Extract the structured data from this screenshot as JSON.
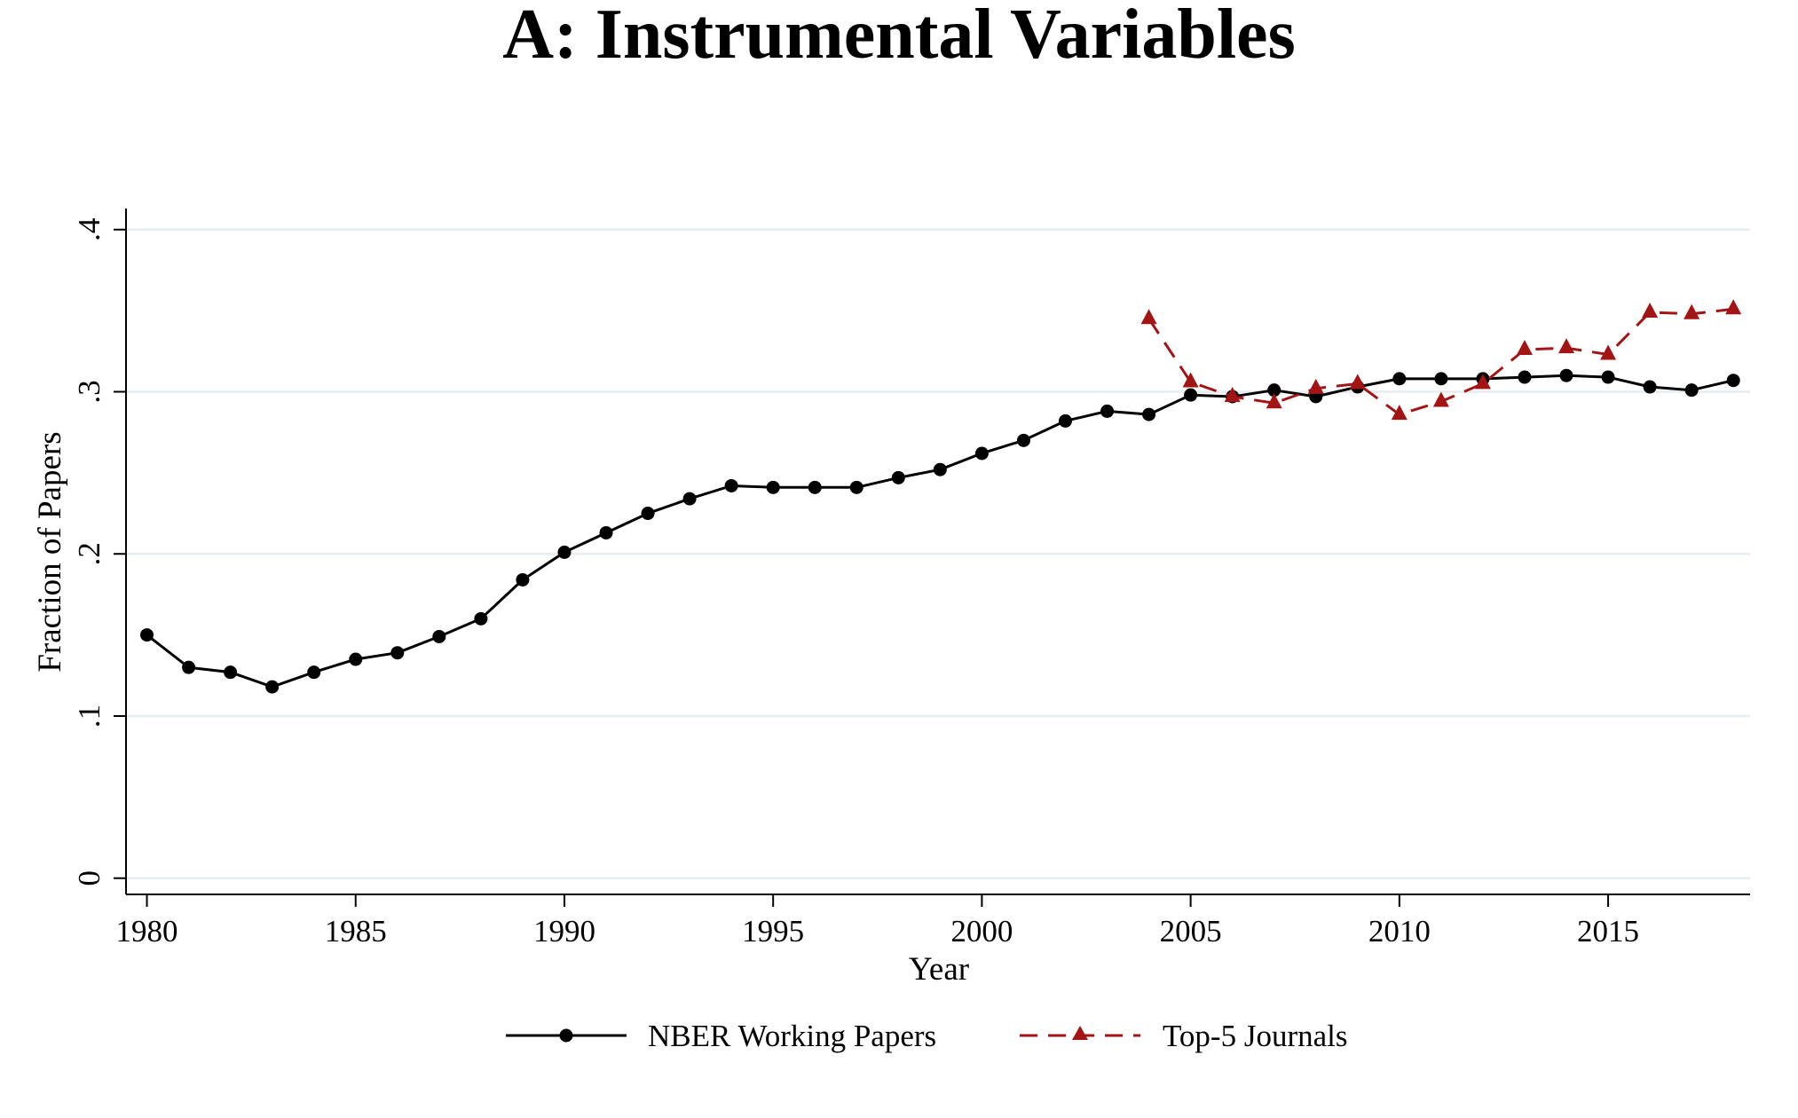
{
  "chart_data": {
    "type": "line",
    "title": "A: Instrumental Variables",
    "xlabel": "Year",
    "ylabel": "Fraction of Papers",
    "xlim": [
      1979.5,
      2018.4
    ],
    "ylim": [
      -0.01,
      0.413
    ],
    "xticks": [
      1980,
      1985,
      1990,
      1995,
      2000,
      2005,
      2010,
      2015
    ],
    "xtick_labels": [
      "1980",
      "1985",
      "1990",
      "1995",
      "2000",
      "2005",
      "2010",
      "2015"
    ],
    "yticks": [
      0,
      0.1,
      0.2,
      0.3,
      0.4
    ],
    "ytick_labels": [
      "0",
      ".1",
      ".2",
      ".3",
      ".4"
    ],
    "grid": true,
    "legend_position": "bottom",
    "series": [
      {
        "name": "NBER Working Papers",
        "color": "#000000",
        "marker": "circle",
        "line_style": "solid",
        "x": [
          1980,
          1981,
          1982,
          1983,
          1984,
          1985,
          1986,
          1987,
          1988,
          1989,
          1990,
          1991,
          1992,
          1993,
          1994,
          1995,
          1996,
          1997,
          1998,
          1999,
          2000,
          2001,
          2002,
          2003,
          2004,
          2005,
          2006,
          2007,
          2008,
          2009,
          2010,
          2011,
          2012,
          2013,
          2014,
          2015,
          2016,
          2017,
          2018
        ],
        "y": [
          0.15,
          0.13,
          0.127,
          0.118,
          0.127,
          0.135,
          0.139,
          0.149,
          0.16,
          0.184,
          0.201,
          0.213,
          0.225,
          0.234,
          0.242,
          0.241,
          0.241,
          0.241,
          0.247,
          0.252,
          0.262,
          0.27,
          0.282,
          0.288,
          0.286,
          0.298,
          0.297,
          0.301,
          0.297,
          0.303,
          0.308,
          0.308,
          0.308,
          0.309,
          0.31,
          0.309,
          0.303,
          0.301,
          0.307
        ]
      },
      {
        "name": "Top-5 Journals",
        "color": "#a31515",
        "marker": "triangle",
        "line_style": "dashed",
        "x": [
          2004,
          2005,
          2006,
          2007,
          2008,
          2009,
          2010,
          2011,
          2012,
          2013,
          2014,
          2015,
          2016,
          2017,
          2018
        ],
        "y": [
          0.345,
          0.306,
          0.297,
          0.293,
          0.302,
          0.305,
          0.286,
          0.294,
          0.305,
          0.326,
          0.327,
          0.323,
          0.349,
          0.348,
          0.351
        ]
      }
    ]
  }
}
